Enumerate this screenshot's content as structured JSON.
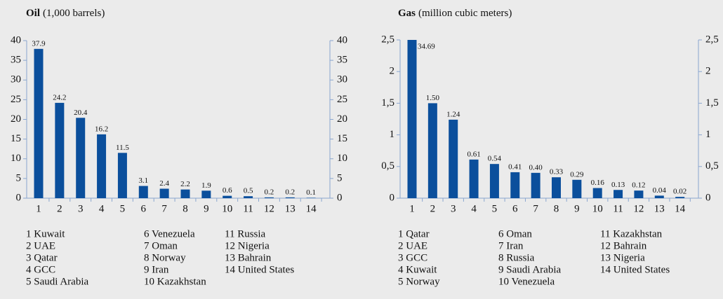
{
  "chart_data": [
    {
      "type": "bar",
      "title": "Oil",
      "subtitle": "(1,000 barrels)",
      "categories": [
        "1",
        "2",
        "3",
        "4",
        "5",
        "6",
        "7",
        "8",
        "9",
        "10",
        "11",
        "12",
        "13",
        "14"
      ],
      "values": [
        37.9,
        24.2,
        20.4,
        16.2,
        11.5,
        3.1,
        2.4,
        2.2,
        1.9,
        0.6,
        0.5,
        0.2,
        0.2,
        0.1
      ],
      "color": "#0b4f9c",
      "ylim": [
        0,
        40
      ],
      "yticks": [
        0,
        5,
        10,
        15,
        20,
        25,
        30,
        35,
        40
      ],
      "legend_items": [
        "1 Kuwait",
        "2 UAE",
        "3 Qatar",
        "4 GCC",
        "5 Saudi Arabia",
        "6 Venezuela",
        "7 Oman",
        "8 Norway",
        "9 Iran",
        "10 Kazakhstan",
        "11 Russia",
        "12 Nigeria",
        "13 Bahrain",
        "14 United States"
      ]
    },
    {
      "type": "bar",
      "title": "Gas",
      "subtitle": "(million cubic meters)",
      "categories": [
        "1",
        "2",
        "3",
        "4",
        "5",
        "6",
        "7",
        "8",
        "9",
        "10",
        "11",
        "12",
        "13",
        "14"
      ],
      "values": [
        34.69,
        1.5,
        1.24,
        0.61,
        0.54,
        0.41,
        0.4,
        0.33,
        0.29,
        0.16,
        0.13,
        0.12,
        0.04,
        0.02
      ],
      "value_labels": [
        "34.69",
        "1.50",
        "1.24",
        "0.61",
        "0.54",
        "0.41",
        "0.40",
        "0.33",
        "0.29",
        "0.16",
        "0.13",
        "0.12",
        "0.04",
        "0.02"
      ],
      "color": "#0b4f9c",
      "ylim": [
        0,
        2.5
      ],
      "yticks": [
        0,
        {
          "value": 0.5,
          "label": "0,5"
        },
        1,
        {
          "value": 1.5,
          "label": "1,5"
        },
        2,
        {
          "value": 2.5,
          "label": "2,5"
        }
      ],
      "legend_items": [
        "1 Qatar",
        "2 UAE",
        "3 GCC",
        "4 Kuwait",
        "5 Norway",
        "6 Oman",
        "7 Iran",
        "8 Russia",
        "9 Saudi Arabia",
        "10 Venezuela",
        "11 Kazakhstan",
        "12 Bahrain",
        "13 Nigeria",
        "14 United States"
      ]
    }
  ]
}
